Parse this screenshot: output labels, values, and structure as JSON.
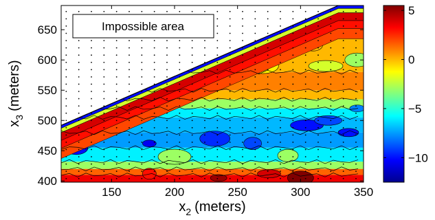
{
  "chart_data": {
    "type": "heatmap",
    "subtype": "filled-contour",
    "xlabel": {
      "base": "x",
      "sub": "2",
      "unit": "(meters)"
    },
    "ylabel": {
      "base": "x",
      "sub": "3",
      "unit": "(meters)"
    },
    "xlim": [
      110,
      350
    ],
    "ylim": [
      398,
      690
    ],
    "x_ticks": [
      150,
      200,
      250,
      300,
      350
    ],
    "y_ticks": [
      400,
      450,
      500,
      550,
      600,
      650
    ],
    "colorbar": {
      "colormap": "jet",
      "range": [
        -12.5,
        5.5
      ],
      "ticks": [
        5,
        0,
        -5,
        -10
      ],
      "tick_labels": [
        "5",
        "0",
        "−5",
        "−10"
      ]
    },
    "boundary_line": [
      [
        110,
        492
      ],
      [
        330,
        690
      ]
    ],
    "annotation": "Impossible area",
    "grid": false,
    "bands": [
      {
        "x3_from": 398,
        "x3_to": 410,
        "value": 3.5
      },
      {
        "x3_from": 410,
        "x3_to": 420,
        "value": 1.5
      },
      {
        "x3_from": 420,
        "x3_to": 432,
        "value": -3
      },
      {
        "x3_from": 432,
        "x3_to": 455,
        "value": -6
      },
      {
        "x3_from": 455,
        "x3_to": 480,
        "value": -7.5
      },
      {
        "x3_from": 480,
        "x3_to": 505,
        "value": -7
      },
      {
        "x3_from": 505,
        "x3_to": 520,
        "value": -6
      },
      {
        "x3_from": 520,
        "x3_to": 535,
        "value": -3
      },
      {
        "x3_from": 535,
        "x3_to": 550,
        "value": 0
      },
      {
        "x3_from": 550,
        "x3_to": 580,
        "value": 1
      },
      {
        "x3_from": 580,
        "x3_to": 690,
        "value": 0
      }
    ],
    "patches": [
      {
        "x": 180,
        "y": 462,
        "value": -10.5
      },
      {
        "x": 122,
        "y": 455,
        "value": -10
      },
      {
        "x": 305,
        "y": 492,
        "value": -10
      },
      {
        "x": 338,
        "y": 480,
        "value": -10
      },
      {
        "x": 232,
        "y": 470,
        "value": -9.5
      },
      {
        "x": 262,
        "y": 462,
        "value": -9
      },
      {
        "x": 322,
        "y": 500,
        "value": -9
      },
      {
        "x": 345,
        "y": 520,
        "value": -8
      },
      {
        "x": 345,
        "y": 600,
        "value": -3
      },
      {
        "x": 320,
        "y": 590,
        "value": -2
      },
      {
        "x": 250,
        "y": 575,
        "value": -1
      },
      {
        "x": 270,
        "y": 590,
        "value": -1
      },
      {
        "x": 310,
        "y": 625,
        "value": 0
      },
      {
        "x": 335,
        "y": 660,
        "value": 1
      },
      {
        "x": 235,
        "y": 405,
        "value": 5
      },
      {
        "x": 300,
        "y": 405,
        "value": 5.5
      },
      {
        "x": 180,
        "y": 412,
        "value": 3
      },
      {
        "x": 275,
        "y": 412,
        "value": 4
      },
      {
        "x": 200,
        "y": 440,
        "value": -3
      },
      {
        "x": 290,
        "y": 442,
        "value": -3
      },
      {
        "x": 150,
        "y": 505,
        "value": -5
      }
    ],
    "edge_band": [
      {
        "offset_from": 0,
        "offset_to": 5,
        "value": -10
      },
      {
        "offset_from": 5,
        "offset_to": 12,
        "value": -2
      },
      {
        "offset_from": 12,
        "offset_to": 25,
        "value": 4
      },
      {
        "offset_from": 25,
        "offset_to": 38,
        "value": 3
      },
      {
        "offset_from": 38,
        "offset_to": 55,
        "value": 2
      }
    ]
  }
}
